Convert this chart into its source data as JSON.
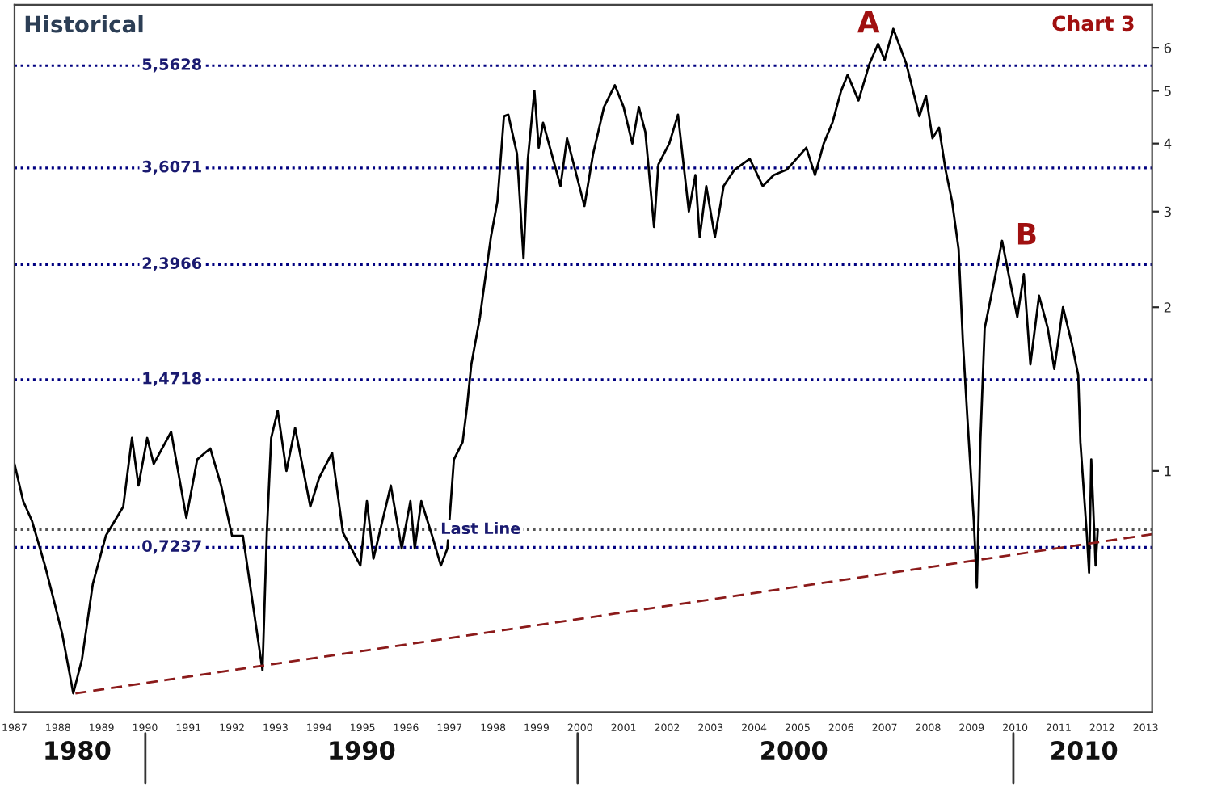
{
  "chart_data": {
    "type": "line",
    "title": "Historical",
    "log": "y",
    "grid": false,
    "legend": false,
    "xlim": [
      1987,
      2013.15
    ],
    "ylim": [
      0.36,
      7.2
    ],
    "xticks": [
      1987,
      1988,
      1989,
      1990,
      1991,
      1992,
      1993,
      1994,
      1995,
      1996,
      1997,
      1998,
      1999,
      2000,
      2001,
      2002,
      2003,
      2004,
      2005,
      2006,
      2007,
      2008,
      2009,
      2010,
      2011,
      2012,
      2013
    ],
    "yticks": [
      1,
      2,
      3,
      4,
      5,
      6
    ],
    "series": [
      {
        "color": "#000000",
        "line_style": "solid",
        "x": [
          1987.0,
          1987.2,
          1987.4,
          1987.7,
          1987.9,
          1988.1,
          1988.35,
          1988.55,
          1988.8,
          1989.1,
          1989.5,
          1989.7,
          1989.85,
          1990.05,
          1990.2,
          1990.6,
          1990.95,
          1991.2,
          1991.5,
          1991.75,
          1992.0,
          1992.25,
          1992.55,
          1992.7,
          1992.8,
          1992.9,
          1993.05,
          1993.25,
          1993.45,
          1993.8,
          1994.0,
          1994.3,
          1994.55,
          1994.95,
          1995.1,
          1995.25,
          1995.65,
          1995.9,
          1996.1,
          1996.2,
          1996.35,
          1996.6,
          1996.8,
          1996.95,
          1997.1,
          1997.3,
          1997.4,
          1997.5,
          1997.7,
          1997.75,
          1997.95,
          1998.1,
          1998.25,
          1998.35,
          1998.55,
          1998.7,
          1998.8,
          1998.95,
          1999.05,
          1999.15,
          1999.55,
          1999.7,
          2000.1,
          2000.3,
          2000.55,
          2000.8,
          2001.0,
          2001.2,
          2001.35,
          2001.5,
          2001.7,
          2001.8,
          2002.05,
          2002.25,
          2002.5,
          2002.65,
          2002.75,
          2002.9,
          2003.1,
          2003.3,
          2003.55,
          2003.9,
          2004.2,
          2004.45,
          2004.75,
          2005.2,
          2005.4,
          2005.6,
          2005.8,
          2006.0,
          2006.15,
          2006.4,
          2006.65,
          2006.85,
          2007.0,
          2007.2,
          2007.5,
          2007.6,
          2007.8,
          2007.95,
          2008.1,
          2008.25,
          2008.4,
          2008.55,
          2008.7,
          2008.8,
          2008.9,
          2009.05,
          2009.12,
          2009.2,
          2009.3,
          2009.55,
          2009.7,
          2009.85,
          2010.05,
          2010.2,
          2010.35,
          2010.55,
          2010.75,
          2010.9,
          2011.1,
          2011.3,
          2011.45,
          2011.5,
          2011.65,
          2011.7,
          2011.75,
          2011.85,
          2011.9
        ],
        "values": [
          1.03,
          0.88,
          0.81,
          0.67,
          0.58,
          0.5,
          0.39,
          0.45,
          0.62,
          0.76,
          0.86,
          1.15,
          0.94,
          1.15,
          1.03,
          1.18,
          0.82,
          1.05,
          1.1,
          0.94,
          0.76,
          0.76,
          0.52,
          0.43,
          0.77,
          1.15,
          1.29,
          1.0,
          1.2,
          0.86,
          0.97,
          1.08,
          0.77,
          0.67,
          0.88,
          0.69,
          0.94,
          0.72,
          0.88,
          0.72,
          0.88,
          0.76,
          0.67,
          0.72,
          1.05,
          1.13,
          1.31,
          1.57,
          1.92,
          2.06,
          2.69,
          3.13,
          4.49,
          4.52,
          3.83,
          2.46,
          3.75,
          5.0,
          3.93,
          4.37,
          3.34,
          4.09,
          3.07,
          3.83,
          4.67,
          5.12,
          4.67,
          4.0,
          4.67,
          4.2,
          2.81,
          3.66,
          4.0,
          4.52,
          3.0,
          3.5,
          2.69,
          3.34,
          2.69,
          3.34,
          3.58,
          3.75,
          3.34,
          3.5,
          3.58,
          3.93,
          3.5,
          4.0,
          4.37,
          5.0,
          5.35,
          4.8,
          5.6,
          6.1,
          5.7,
          6.5,
          5.6,
          5.2,
          4.49,
          4.9,
          4.09,
          4.28,
          3.58,
          3.13,
          2.56,
          1.72,
          1.26,
          0.81,
          0.61,
          1.13,
          1.83,
          2.3,
          2.65,
          2.3,
          1.92,
          2.3,
          1.57,
          2.1,
          1.83,
          1.54,
          2.0,
          1.72,
          1.5,
          1.13,
          0.76,
          0.65,
          1.05,
          0.67,
          0.78
        ]
      },
      {
        "color": "#8b1a1a",
        "line_style": "dashed",
        "x": [
          1988.4,
          2013.15
        ],
        "values": [
          0.39,
          0.765
        ]
      }
    ],
    "ref_lines": [
      {
        "axis": "y",
        "value": 5.5628,
        "label": "5,5628",
        "color": "#000080",
        "line_style": "dotted"
      },
      {
        "axis": "y",
        "value": 3.6071,
        "label": "3,6071",
        "color": "#000080",
        "line_style": "dotted"
      },
      {
        "axis": "y",
        "value": 2.3966,
        "label": "2,3966",
        "color": "#000080",
        "line_style": "dotted"
      },
      {
        "axis": "y",
        "value": 1.4718,
        "label": "1,4718",
        "color": "#000080",
        "line_style": "dotted"
      },
      {
        "axis": "y",
        "value": 0.7237,
        "label": "0,7237",
        "color": "#000080",
        "line_style": "dotted"
      },
      {
        "axis": "y",
        "value": 0.78,
        "label": "Last Line",
        "color": "#555555",
        "line_style": "dotted"
      }
    ],
    "annotations": [
      {
        "text": "A",
        "x": 2007.2,
        "y": 6.5
      },
      {
        "text": "B",
        "x": 2009.7,
        "y": 2.65
      },
      "1980",
      "1990",
      "2000",
      "2010",
      "Chart 3"
    ]
  }
}
